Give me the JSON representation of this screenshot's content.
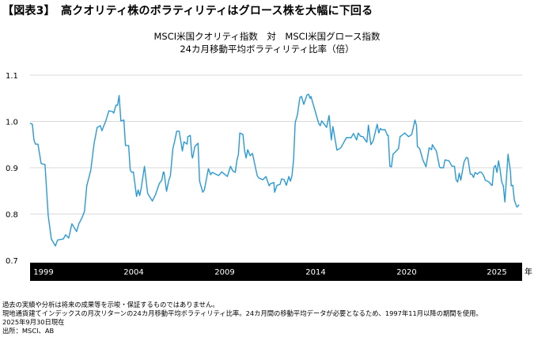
{
  "title": "【図表3】　高クオリティ株のボラティリティはグロース株を大幅に下回る",
  "chart_data": {
    "type": "line",
    "title": "MSCI米国クオリティ指数　対　MSCI米国グロース指数",
    "subtitle": "24カ月移動平均ボラティリティ比率（倍）",
    "xlabel": "年",
    "ylabel": "",
    "ylim": [
      0.7,
      1.1
    ],
    "xlim": [
      1997.83,
      2025.75
    ],
    "yticks": [
      0.7,
      0.8,
      0.9,
      1.0,
      1.1
    ],
    "ytick_labels": [
      "0.7",
      "0.8",
      "0.9",
      "1.0",
      "1.1"
    ],
    "xtick_labels": [
      "1999",
      "2004",
      "2009",
      "2014",
      "2020",
      "2025"
    ],
    "grid": true,
    "color": "#2a9ad6",
    "series": [
      {
        "name": "ボラティリティ比率",
        "points": [
          [
            1997.83,
            0.996
          ],
          [
            1997.96,
            0.994
          ],
          [
            1998.05,
            0.96
          ],
          [
            1998.14,
            0.951
          ],
          [
            1998.28,
            0.951
          ],
          [
            1998.46,
            0.909
          ],
          [
            1998.68,
            0.907
          ],
          [
            1998.86,
            0.797
          ],
          [
            1999.04,
            0.746
          ],
          [
            1999.27,
            0.731
          ],
          [
            1999.4,
            0.744
          ],
          [
            1999.72,
            0.746
          ],
          [
            1999.85,
            0.755
          ],
          [
            2000.03,
            0.748
          ],
          [
            2000.21,
            0.779
          ],
          [
            2000.48,
            0.762
          ],
          [
            2000.61,
            0.779
          ],
          [
            2000.79,
            0.792
          ],
          [
            2000.93,
            0.806
          ],
          [
            2001.06,
            0.861
          ],
          [
            2001.29,
            0.895
          ],
          [
            2001.47,
            0.951
          ],
          [
            2001.65,
            0.987
          ],
          [
            2001.83,
            0.991
          ],
          [
            2001.92,
            0.98
          ],
          [
            2002.14,
            1.001
          ],
          [
            2002.32,
            1.023
          ],
          [
            2002.54,
            1.021
          ],
          [
            2002.59,
            1.018
          ],
          [
            2002.72,
            1.035
          ],
          [
            2002.81,
            1.035
          ],
          [
            2002.9,
            1.056
          ],
          [
            2003.0,
            1.001
          ],
          [
            2003.17,
            1.003
          ],
          [
            2003.26,
            0.948
          ],
          [
            2003.44,
            0.948
          ],
          [
            2003.53,
            0.895
          ],
          [
            2003.62,
            0.89
          ],
          [
            2003.71,
            0.891
          ],
          [
            2003.89,
            0.838
          ],
          [
            2003.98,
            0.852
          ],
          [
            2004.07,
            0.84
          ],
          [
            2004.16,
            0.857
          ],
          [
            2004.34,
            0.903
          ],
          [
            2004.52,
            0.845
          ],
          [
            2004.79,
            0.828
          ],
          [
            2004.97,
            0.842
          ],
          [
            2005.19,
            0.866
          ],
          [
            2005.33,
            0.873
          ],
          [
            2005.42,
            0.891
          ],
          [
            2005.46,
            0.89
          ],
          [
            2005.6,
            0.849
          ],
          [
            2005.73,
            0.873
          ],
          [
            2005.82,
            0.883
          ],
          [
            2005.96,
            0.941
          ],
          [
            2006.05,
            0.955
          ],
          [
            2006.18,
            0.979
          ],
          [
            2006.32,
            0.979
          ],
          [
            2006.5,
            0.936
          ],
          [
            2006.59,
            0.956
          ],
          [
            2006.77,
            0.951
          ],
          [
            2006.81,
            0.967
          ],
          [
            2006.95,
            0.97
          ],
          [
            2007.04,
            0.926
          ],
          [
            2007.08,
            0.921
          ],
          [
            2007.21,
            0.946
          ],
          [
            2007.39,
            0.953
          ],
          [
            2007.48,
            0.871
          ],
          [
            2007.66,
            0.847
          ],
          [
            2007.75,
            0.852
          ],
          [
            2007.98,
            0.898
          ],
          [
            2008.11,
            0.885
          ],
          [
            2008.2,
            0.89
          ],
          [
            2008.56,
            0.883
          ],
          [
            2008.74,
            0.891
          ],
          [
            2009.06,
            0.881
          ],
          [
            2009.24,
            0.903
          ],
          [
            2009.37,
            0.893
          ],
          [
            2009.51,
            0.89
          ],
          [
            2009.6,
            0.915
          ],
          [
            2009.69,
            0.929
          ],
          [
            2009.77,
            0.975
          ],
          [
            2009.95,
            0.972
          ],
          [
            2010.04,
            0.938
          ],
          [
            2010.13,
            0.921
          ],
          [
            2010.22,
            0.939
          ],
          [
            2010.36,
            0.926
          ],
          [
            2010.49,
            0.931
          ],
          [
            2010.76,
            0.883
          ],
          [
            2010.85,
            0.878
          ],
          [
            2011.08,
            0.874
          ],
          [
            2011.26,
            0.881
          ],
          [
            2011.44,
            0.861
          ],
          [
            2011.53,
            0.866
          ],
          [
            2011.71,
            0.868
          ],
          [
            2011.75,
            0.847
          ],
          [
            2011.89,
            0.862
          ],
          [
            2012.06,
            0.864
          ],
          [
            2012.15,
            0.876
          ],
          [
            2012.29,
            0.874
          ],
          [
            2012.42,
            0.862
          ],
          [
            2012.56,
            0.881
          ],
          [
            2012.65,
            0.871
          ],
          [
            2012.74,
            0.883
          ],
          [
            2012.83,
            0.917
          ],
          [
            2012.92,
            0.997
          ],
          [
            2013.05,
            1.015
          ],
          [
            2013.19,
            1.052
          ],
          [
            2013.28,
            1.054
          ],
          [
            2013.41,
            1.037
          ],
          [
            2013.59,
            1.057
          ],
          [
            2013.68,
            1.059
          ],
          [
            2013.77,
            1.05
          ],
          [
            2013.82,
            1.054
          ],
          [
            2014.09,
            1.018
          ],
          [
            2014.26,
            0.996
          ],
          [
            2014.35,
            0.991
          ],
          [
            2014.44,
            1.001
          ],
          [
            2014.67,
            0.989
          ],
          [
            2014.71,
            0.987
          ],
          [
            2014.85,
            1.013
          ],
          [
            2014.98,
            0.96
          ],
          [
            2015.07,
            0.989
          ],
          [
            2015.3,
            0.938
          ],
          [
            2015.52,
            0.943
          ],
          [
            2015.84,
            0.965
          ],
          [
            2016.11,
            0.965
          ],
          [
            2016.24,
            0.974
          ],
          [
            2016.42,
            0.96
          ],
          [
            2016.51,
            0.975
          ],
          [
            2016.64,
            0.968
          ],
          [
            2016.78,
            0.967
          ],
          [
            2017.0,
            0.955
          ],
          [
            2017.09,
            0.992
          ],
          [
            2017.23,
            0.95
          ],
          [
            2017.36,
            0.958
          ],
          [
            2017.59,
            0.994
          ],
          [
            2017.68,
            0.975
          ],
          [
            2017.77,
            0.985
          ],
          [
            2017.86,
            0.982
          ],
          [
            2018.04,
            0.982
          ],
          [
            2018.17,
            0.97
          ],
          [
            2018.22,
            0.97
          ],
          [
            2018.31,
            0.903
          ],
          [
            2018.4,
            0.902
          ],
          [
            2018.49,
            0.929
          ],
          [
            2018.8,
            0.941
          ],
          [
            2018.89,
            0.967
          ],
          [
            2019.16,
            0.975
          ],
          [
            2019.38,
            0.967
          ],
          [
            2019.56,
            0.972
          ],
          [
            2019.74,
            1.003
          ],
          [
            2019.83,
            0.991
          ],
          [
            2019.88,
            0.946
          ],
          [
            2020.01,
            0.941
          ],
          [
            2020.19,
            0.917
          ],
          [
            2020.37,
            0.902
          ],
          [
            2020.55,
            0.943
          ],
          [
            2020.69,
            0.939
          ],
          [
            2020.73,
            0.95
          ],
          [
            2020.87,
            0.941
          ],
          [
            2020.96,
            0.936
          ],
          [
            2021.14,
            0.902
          ],
          [
            2021.18,
            0.9
          ],
          [
            2021.36,
            0.9
          ],
          [
            2021.45,
            0.917
          ],
          [
            2021.67,
            0.915
          ],
          [
            2021.85,
            0.903
          ],
          [
            2021.99,
            0.903
          ],
          [
            2022.08,
            0.874
          ],
          [
            2022.17,
            0.869
          ],
          [
            2022.26,
            0.888
          ],
          [
            2022.35,
            0.873
          ],
          [
            2022.53,
            0.912
          ],
          [
            2022.66,
            0.922
          ],
          [
            2022.75,
            0.921
          ],
          [
            2022.89,
            0.886
          ],
          [
            2022.98,
            0.886
          ],
          [
            2023.07,
            0.879
          ],
          [
            2023.16,
            0.89
          ],
          [
            2023.29,
            0.886
          ],
          [
            2023.43,
            0.891
          ],
          [
            2023.52,
            0.89
          ],
          [
            2023.65,
            0.883
          ],
          [
            2023.74,
            0.873
          ],
          [
            2023.96,
            0.869
          ],
          [
            2024.1,
            0.862
          ],
          [
            2024.14,
            0.862
          ],
          [
            2024.23,
            0.9
          ],
          [
            2024.32,
            0.905
          ],
          [
            2024.41,
            0.89
          ],
          [
            2024.5,
            0.915
          ],
          [
            2024.59,
            0.895
          ],
          [
            2024.68,
            0.869
          ],
          [
            2024.77,
            0.861
          ],
          [
            2024.86,
            0.826
          ],
          [
            2025.04,
            0.929
          ],
          [
            2025.18,
            0.891
          ],
          [
            2025.22,
            0.861
          ],
          [
            2025.31,
            0.862
          ],
          [
            2025.4,
            0.83
          ],
          [
            2025.54,
            0.815
          ],
          [
            2025.67,
            0.82
          ]
        ]
      }
    ]
  },
  "notes": [
    "過去の実績や分析は将来の成果等を示唆・保証するものではありません。",
    "現地通貨建てインデックスの月次リターンの24カ月移動平均ボラティリティ比率。24カ月間の移動平均データが必要となるため、1997年11月以降の期間を使用。",
    "2025年9月30日現在",
    "出所：MSCI、AB"
  ]
}
